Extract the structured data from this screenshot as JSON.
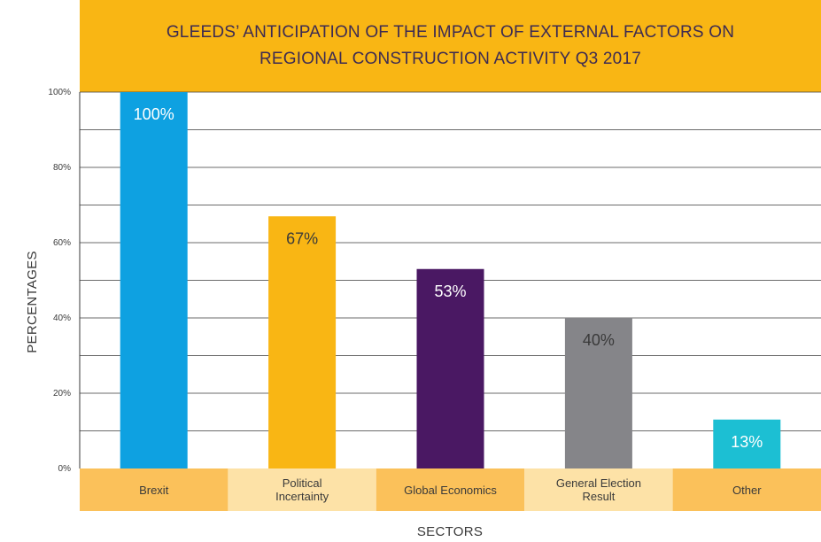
{
  "chart_data": {
    "type": "bar",
    "title_lines": [
      "GLEEDS’ ANTICIPATION OF THE IMPACT OF EXTERNAL FACTORS ON",
      "REGIONAL CONSTRUCTION ACTIVITY Q3 2017"
    ],
    "xlabel": "SECTORS",
    "ylabel": "PERCENTAGES",
    "ylim": [
      0,
      100
    ],
    "yticks": [
      0,
      20,
      40,
      60,
      80,
      100
    ],
    "ytick_labels": [
      "0%",
      "20%",
      "40%",
      "60%",
      "80%",
      "100%"
    ],
    "categories": [
      "Brexit",
      "Political Incertainty",
      "Global Economics",
      "General Election Result",
      "Other"
    ],
    "values": [
      100,
      67,
      53,
      40,
      13
    ],
    "data_labels": [
      "100%",
      "67%",
      "53%",
      "40%",
      "13%"
    ],
    "bar_colors": [
      "#0ea1e1",
      "#f9b614",
      "#4a1863",
      "#858589",
      "#1cbfd3"
    ],
    "label_colors": [
      "#ffffff",
      "#3a3a3a",
      "#ffffff",
      "#3a3a3a",
      "#ffffff"
    ],
    "category_band_colors": [
      "#fbc15a",
      "#fde2a7",
      "#fbc15a",
      "#fde2a7",
      "#fbc15a"
    ],
    "grid": true
  }
}
